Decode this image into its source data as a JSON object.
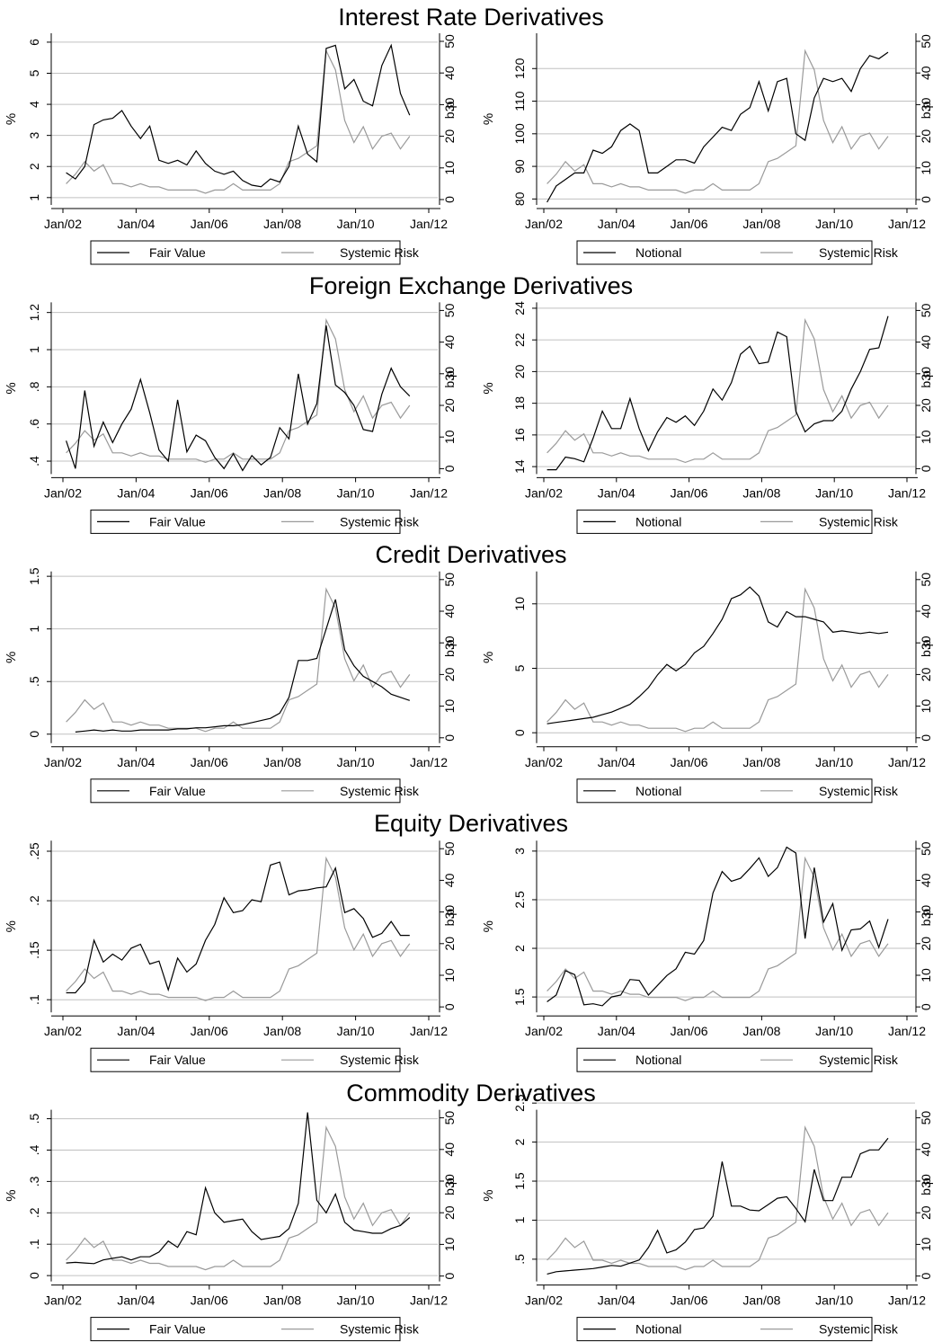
{
  "sections": [
    {
      "title": "Interest Rate Derivatives"
    },
    {
      "title": "Foreign Exchange Derivatives"
    },
    {
      "title": "Credit Derivatives"
    },
    {
      "title": "Equity Derivatives"
    },
    {
      "title": "Commodity Derivatives"
    }
  ],
  "colors": {
    "primary": "#000000",
    "systemic": "#9a9a9a",
    "grid": "#c0c0c0"
  },
  "systemic_risk_bp": [
    5,
    8,
    12,
    9,
    11,
    5,
    5,
    4,
    5,
    4,
    4,
    3,
    3,
    3,
    3,
    2,
    3,
    3,
    5,
    3,
    3,
    3,
    3,
    5,
    12,
    13,
    15,
    17,
    47,
    41,
    25,
    18,
    23,
    16,
    20,
    21,
    16,
    20
  ],
  "chart_data": [
    {
      "type": "line",
      "section": 0,
      "panel": "left",
      "x_ticks": [
        "Jan/02",
        "Jan/04",
        "Jan/06",
        "Jan/08",
        "Jan/10",
        "Jan/12"
      ],
      "y_left_ticks": [
        "1",
        "2",
        "3",
        "4",
        "5",
        "6"
      ],
      "ylim": [
        0.85,
        6.2
      ],
      "y_right_ticks": [
        "0",
        "10",
        "20",
        "30",
        "40",
        "50"
      ],
      "y_right_label": "b.p",
      "ylabel": "%",
      "series": [
        {
          "name": "Fair Value",
          "values": [
            1.8,
            1.6,
            2.0,
            3.35,
            3.5,
            3.55,
            3.8,
            3.3,
            2.9,
            3.3,
            2.2,
            2.1,
            2.2,
            2.05,
            2.5,
            2.1,
            1.85,
            1.75,
            1.85,
            1.55,
            1.4,
            1.35,
            1.6,
            1.5,
            2.0,
            3.3,
            2.4,
            2.15,
            5.8,
            5.9,
            4.5,
            4.8,
            4.1,
            3.95,
            5.25,
            5.9,
            4.35,
            3.65
          ]
        },
        {
          "name": "Systemic Risk"
        }
      ]
    },
    {
      "type": "line",
      "section": 0,
      "panel": "right",
      "x_ticks": [
        "Jan/02",
        "Jan/04",
        "Jan/06",
        "Jan/08",
        "Jan/10",
        "Jan/12"
      ],
      "y_left_ticks": [
        "80",
        "90",
        "100",
        "110",
        "120"
      ],
      "ylim": [
        79,
        130
      ],
      "y_right_ticks": [
        "0",
        "10",
        "20",
        "30",
        "40",
        "50"
      ],
      "y_right_label": "b.p",
      "ylabel": "%",
      "series": [
        {
          "name": "Notional",
          "values": [
            79,
            84,
            86,
            88,
            88,
            95,
            94,
            96,
            101,
            103,
            101,
            88,
            88,
            90,
            92,
            92,
            91,
            96,
            99,
            102,
            101,
            106,
            108,
            116,
            107,
            116,
            117,
            100,
            98,
            111,
            117,
            116,
            117,
            113,
            120,
            124,
            123,
            125
          ]
        },
        {
          "name": "Systemic Risk"
        }
      ]
    },
    {
      "type": "line",
      "section": 1,
      "panel": "left",
      "x_ticks": [
        "Jan/02",
        "Jan/04",
        "Jan/06",
        "Jan/08",
        "Jan/10",
        "Jan/12"
      ],
      "y_left_ticks": [
        ".4",
        ".6",
        ".8",
        "1",
        "1.2"
      ],
      "ylim": [
        0.345,
        1.24
      ],
      "y_right_ticks": [
        "0",
        "10",
        "20",
        "30",
        "40",
        "50"
      ],
      "y_right_label": "b.p",
      "ylabel": "%",
      "series": [
        {
          "name": "Fair Value",
          "values": [
            0.51,
            0.36,
            0.78,
            0.48,
            0.61,
            0.5,
            0.6,
            0.68,
            0.84,
            0.66,
            0.46,
            0.4,
            0.73,
            0.45,
            0.54,
            0.51,
            0.42,
            0.36,
            0.44,
            0.35,
            0.43,
            0.38,
            0.42,
            0.58,
            0.52,
            0.87,
            0.6,
            0.71,
            1.13,
            0.81,
            0.77,
            0.7,
            0.57,
            0.56,
            0.76,
            0.9,
            0.8,
            0.75
          ]
        },
        {
          "name": "Systemic Risk"
        }
      ]
    },
    {
      "type": "line",
      "section": 1,
      "panel": "right",
      "x_ticks": [
        "Jan/02",
        "Jan/04",
        "Jan/06",
        "Jan/08",
        "Jan/10",
        "Jan/12"
      ],
      "y_left_ticks": [
        "14",
        "16",
        "18",
        "20",
        "22",
        "24"
      ],
      "ylim": [
        13.7,
        24.2
      ],
      "y_right_ticks": [
        "0",
        "10",
        "20",
        "30",
        "40",
        "50"
      ],
      "y_right_label": "b.p",
      "ylabel": "%",
      "series": [
        {
          "name": "Notional",
          "values": [
            13.8,
            13.8,
            14.6,
            14.5,
            14.3,
            15.8,
            17.5,
            16.4,
            16.4,
            18.3,
            16.4,
            15.0,
            16.2,
            17.1,
            16.8,
            17.2,
            16.6,
            17.5,
            18.9,
            18.2,
            19.3,
            21.1,
            21.6,
            20.5,
            20.6,
            22.5,
            22.2,
            17.5,
            16.2,
            16.7,
            16.9,
            16.9,
            17.5,
            18.9,
            20.0,
            21.4,
            21.5,
            23.5
          ]
        },
        {
          "name": "Systemic Risk"
        }
      ]
    },
    {
      "type": "line",
      "section": 2,
      "panel": "left",
      "x_ticks": [
        "Jan/02",
        "Jan/04",
        "Jan/06",
        "Jan/08",
        "Jan/10",
        "Jan/12"
      ],
      "y_left_ticks": [
        "0",
        ".5",
        "1",
        "1.5"
      ],
      "ylim": [
        -0.06,
        1.52
      ],
      "y_right_ticks": [
        "0",
        "10",
        "20",
        "30",
        "40",
        "50"
      ],
      "y_right_label": "b.p",
      "ylabel": "%",
      "series": [
        {
          "name": "Fair Value",
          "values": [
            null,
            0.02,
            0.03,
            0.04,
            0.03,
            0.04,
            0.03,
            0.03,
            0.04,
            0.04,
            0.04,
            0.04,
            0.05,
            0.05,
            0.06,
            0.06,
            0.07,
            0.08,
            0.08,
            0.09,
            0.11,
            0.13,
            0.15,
            0.2,
            0.35,
            0.7,
            0.7,
            0.72,
            1.0,
            1.28,
            0.8,
            0.65,
            0.55,
            0.5,
            0.45,
            0.38,
            0.35,
            0.32
          ]
        },
        {
          "name": "Systemic Risk"
        }
      ]
    },
    {
      "type": "line",
      "section": 2,
      "panel": "right",
      "x_ticks": [
        "Jan/02",
        "Jan/04",
        "Jan/06",
        "Jan/08",
        "Jan/10",
        "Jan/12"
      ],
      "y_left_ticks": [
        "0",
        "5",
        "10"
      ],
      "ylim": [
        -0.6,
        12.3
      ],
      "y_right_ticks": [
        "0",
        "10",
        "20",
        "30",
        "40",
        "50"
      ],
      "y_right_label": "b.p",
      "ylabel": "%",
      "series": [
        {
          "name": "Notional",
          "values": [
            0.7,
            0.8,
            0.9,
            1.0,
            1.1,
            1.2,
            1.4,
            1.6,
            1.9,
            2.2,
            2.8,
            3.5,
            4.5,
            5.3,
            4.8,
            5.3,
            6.2,
            6.7,
            7.7,
            8.8,
            10.4,
            10.7,
            11.3,
            10.6,
            8.6,
            8.2,
            9.4,
            9.0,
            9.0,
            8.8,
            8.6,
            7.8,
            7.9,
            7.8,
            7.7,
            7.8,
            7.7,
            7.8
          ]
        },
        {
          "name": "Systemic Risk"
        }
      ]
    },
    {
      "type": "line",
      "section": 3,
      "panel": "left",
      "x_ticks": [
        "Jan/02",
        "Jan/04",
        "Jan/06",
        "Jan/08",
        "Jan/10",
        "Jan/12"
      ],
      "y_left_ticks": [
        ".1",
        ".15",
        ".2",
        ".25"
      ],
      "ylim": [
        0.09,
        0.258
      ],
      "y_right_ticks": [
        "0",
        "10",
        "20",
        "30",
        "40",
        "50"
      ],
      "y_right_label": "b.p",
      "ylabel": "%",
      "series": [
        {
          "name": "Fair Value",
          "values": [
            0.107,
            0.107,
            0.118,
            0.16,
            0.138,
            0.146,
            0.14,
            0.152,
            0.156,
            0.136,
            0.139,
            0.11,
            0.142,
            0.128,
            0.136,
            0.16,
            0.176,
            0.203,
            0.188,
            0.19,
            0.201,
            0.199,
            0.236,
            0.239,
            0.206,
            0.21,
            0.211,
            0.213,
            0.214,
            0.233,
            0.188,
            0.192,
            0.182,
            0.163,
            0.167,
            0.179,
            0.165,
            0.165
          ]
        },
        {
          "name": "Systemic Risk"
        }
      ]
    },
    {
      "type": "line",
      "section": 3,
      "panel": "right",
      "x_ticks": [
        "Jan/02",
        "Jan/04",
        "Jan/06",
        "Jan/08",
        "Jan/10",
        "Jan/12"
      ],
      "y_left_ticks": [
        "1.5",
        "2",
        "2.5",
        "3"
      ],
      "ylim": [
        1.37,
        3.08
      ],
      "y_right_ticks": [
        "0",
        "10",
        "20",
        "30",
        "40",
        "50"
      ],
      "y_right_label": "b.p",
      "ylabel": "%",
      "series": [
        {
          "name": "Notional",
          "values": [
            1.45,
            1.52,
            1.77,
            1.73,
            1.42,
            1.43,
            1.41,
            1.5,
            1.52,
            1.68,
            1.67,
            1.52,
            1.62,
            1.72,
            1.79,
            1.96,
            1.94,
            2.08,
            2.57,
            2.79,
            2.69,
            2.72,
            2.82,
            2.93,
            2.74,
            2.83,
            3.04,
            2.98,
            2.1,
            2.83,
            2.27,
            2.46,
            1.98,
            2.19,
            2.2,
            2.28,
            2.01,
            2.3
          ]
        },
        {
          "name": "Systemic Risk"
        }
      ]
    },
    {
      "type": "line",
      "section": 4,
      "panel": "left",
      "x_ticks": [
        "Jan/02",
        "Jan/04",
        "Jan/06",
        "Jan/08",
        "Jan/10",
        "Jan/12"
      ],
      "y_left_ticks": [
        "0",
        ".1",
        ".2",
        ".3",
        ".4",
        ".5"
      ],
      "ylim": [
        -0.01,
        0.52
      ],
      "y_right_ticks": [
        "0",
        "10",
        "20",
        "30",
        "40",
        "50"
      ],
      "y_right_label": "b.p",
      "ylabel": "%",
      "series": [
        {
          "name": "Fair Value",
          "values": [
            0.04,
            0.042,
            0.04,
            0.038,
            0.05,
            0.055,
            0.06,
            0.05,
            0.06,
            0.06,
            0.075,
            0.11,
            0.09,
            0.14,
            0.13,
            0.28,
            0.2,
            0.17,
            0.175,
            0.18,
            0.14,
            0.115,
            0.12,
            0.125,
            0.15,
            0.23,
            0.52,
            0.24,
            0.2,
            0.26,
            0.17,
            0.145,
            0.14,
            0.135,
            0.135,
            0.15,
            0.16,
            0.185
          ]
        },
        {
          "name": "Systemic Risk"
        }
      ]
    },
    {
      "type": "line",
      "section": 4,
      "panel": "right",
      "x_ticks": [
        "Jan/02",
        "Jan/04",
        "Jan/06",
        "Jan/08",
        "Jan/10",
        "Jan/12"
      ],
      "y_left_ticks": [
        ".5",
        "1",
        "1.5",
        "2",
        "2.5"
      ],
      "ylim": [
        0.25,
        2.38
      ],
      "y_right_ticks": [
        "0",
        "10",
        "20",
        "30",
        "40",
        "50"
      ],
      "y_right_label": "b.p",
      "ylabel": "%",
      "series": [
        {
          "name": "Notional",
          "values": [
            0.31,
            0.34,
            0.35,
            0.36,
            0.37,
            0.38,
            0.4,
            0.42,
            0.41,
            0.45,
            0.49,
            0.65,
            0.87,
            0.58,
            0.62,
            0.72,
            0.88,
            0.9,
            1.05,
            1.75,
            1.18,
            1.18,
            1.13,
            1.12,
            1.2,
            1.28,
            1.3,
            1.15,
            0.98,
            1.65,
            1.25,
            1.25,
            1.55,
            1.55,
            1.85,
            1.9,
            1.9,
            2.05
          ]
        },
        {
          "name": "Systemic Risk"
        }
      ]
    }
  ]
}
